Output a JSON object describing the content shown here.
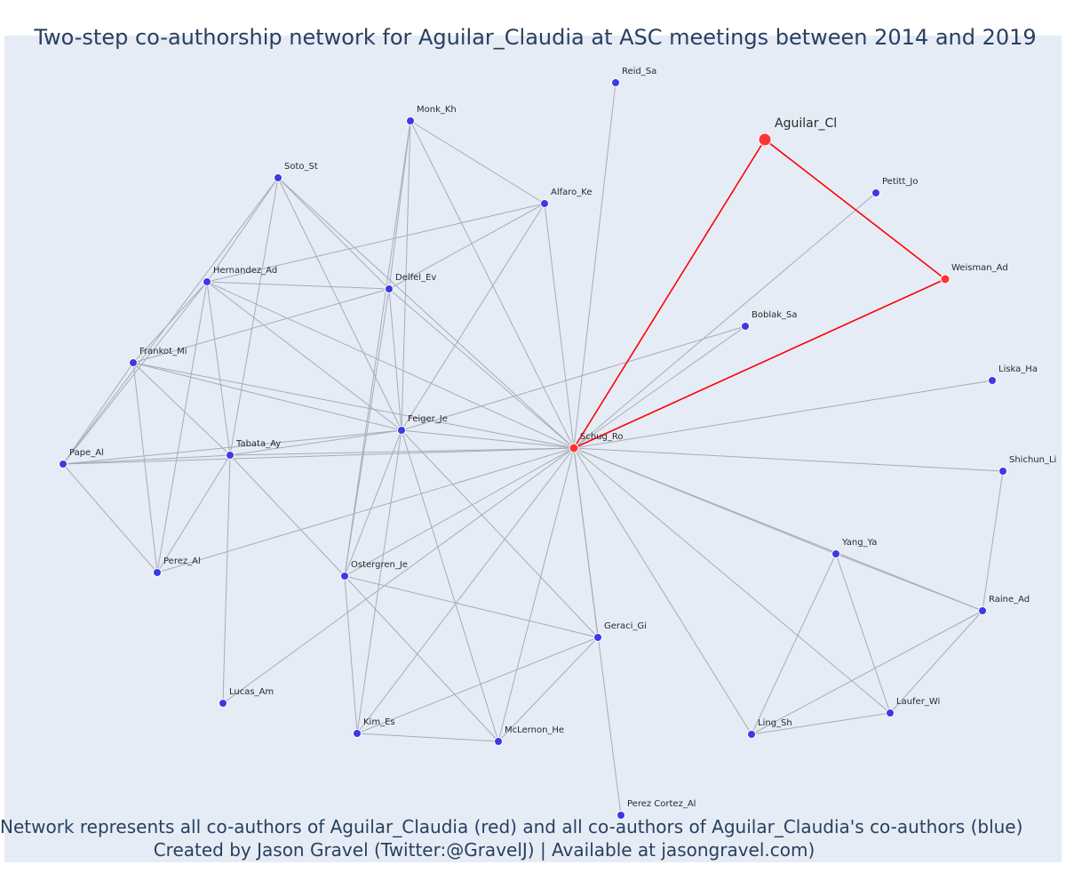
{
  "title": "Two-step co-authorship network for Aguilar_Claudia at ASC meetings between 2014 and 2019",
  "footer": {
    "line1": "Network represents all co-authors of Aguilar_Claudia (red) and all co-authors of Aguilar_Claudia's co-authors (blue)",
    "line2": "Created by Jason Gravel (Twitter:@GravelJ) | Available at jasongravel.com)"
  },
  "colors": {
    "background": "#e5ecf6",
    "primary_node": "#ff3333",
    "secondary_node": "#3a3ae6",
    "edge": "#a8abb6",
    "primary_edge": "#ff0000"
  },
  "nodes": [
    {
      "id": "Aguilar_Cl",
      "label": "Aguilar_Cl",
      "group": "focal"
    },
    {
      "id": "Weisman_Ad",
      "label": "Weisman_Ad",
      "group": "coauthor"
    },
    {
      "id": "Schug_Ro",
      "label": "Schug_Ro",
      "group": "coauthor"
    },
    {
      "id": "Reid_Sa",
      "label": "Reid_Sa",
      "group": "second"
    },
    {
      "id": "Monk_Kh",
      "label": "Monk_Kh",
      "group": "second"
    },
    {
      "id": "Alfaro_Ke",
      "label": "Alfaro_Ke",
      "group": "second"
    },
    {
      "id": "Soto_St",
      "label": "Soto_St",
      "group": "second"
    },
    {
      "id": "Petitt_Jo",
      "label": "Petitt_Jo",
      "group": "second"
    },
    {
      "id": "Hernandez_Ad",
      "label": "Hernandez_Ad",
      "group": "second"
    },
    {
      "id": "Delfel_Ev",
      "label": "Delfel_Ev",
      "group": "second"
    },
    {
      "id": "Boblak_Sa",
      "label": "Boblak_Sa",
      "group": "second"
    },
    {
      "id": "Frankot_Mi",
      "label": "Frankot_Mi",
      "group": "second"
    },
    {
      "id": "Liska_Ha",
      "label": "Liska_Ha",
      "group": "second"
    },
    {
      "id": "Feiger_Je",
      "label": "Feiger_Je",
      "group": "second"
    },
    {
      "id": "Tabata_Ay",
      "label": "Tabata_Ay",
      "group": "second"
    },
    {
      "id": "Pape_Al",
      "label": "Pape_Al",
      "group": "second"
    },
    {
      "id": "Shichun_Li",
      "label": "Shichun_Li",
      "group": "second"
    },
    {
      "id": "Yang_Ya",
      "label": "Yang_Ya",
      "group": "second"
    },
    {
      "id": "Perez_Al",
      "label": "Perez_Al",
      "group": "second"
    },
    {
      "id": "Ostergren_Je",
      "label": "Ostergren_Je",
      "group": "second"
    },
    {
      "id": "Raine_Ad",
      "label": "Raine_Ad",
      "group": "second"
    },
    {
      "id": "Geraci_Gi",
      "label": "Geraci_Gi",
      "group": "second"
    },
    {
      "id": "Lucas_Am",
      "label": "Lucas_Am",
      "group": "second"
    },
    {
      "id": "Laufer_Wi",
      "label": "Laufer_Wi",
      "group": "second"
    },
    {
      "id": "Kim_Es",
      "label": "Kim_Es",
      "group": "second"
    },
    {
      "id": "McLernon_He",
      "label": "McLernon_He",
      "group": "second"
    },
    {
      "id": "Ling_Sh",
      "label": "Ling_Sh",
      "group": "second"
    },
    {
      "id": "Perez_Cortez_Al",
      "label": "Perez Cortez_Al",
      "group": "second"
    }
  ],
  "edges": [
    [
      "Aguilar_Cl",
      "Schug_Ro"
    ],
    [
      "Aguilar_Cl",
      "Weisman_Ad"
    ],
    [
      "Weisman_Ad",
      "Schug_Ro"
    ],
    [
      "Schug_Ro",
      "Reid_Sa"
    ],
    [
      "Schug_Ro",
      "Monk_Kh"
    ],
    [
      "Schug_Ro",
      "Alfaro_Ke"
    ],
    [
      "Schug_Ro",
      "Soto_St"
    ],
    [
      "Schug_Ro",
      "Petitt_Jo"
    ],
    [
      "Schug_Ro",
      "Hernandez_Ad"
    ],
    [
      "Schug_Ro",
      "Delfel_Ev"
    ],
    [
      "Schug_Ro",
      "Boblak_Sa"
    ],
    [
      "Schug_Ro",
      "Frankot_Mi"
    ],
    [
      "Schug_Ro",
      "Liska_Ha"
    ],
    [
      "Schug_Ro",
      "Feiger_Je"
    ],
    [
      "Schug_Ro",
      "Tabata_Ay"
    ],
    [
      "Schug_Ro",
      "Pape_Al"
    ],
    [
      "Schug_Ro",
      "Shichun_Li"
    ],
    [
      "Schug_Ro",
      "Yang_Ya"
    ],
    [
      "Schug_Ro",
      "Perez_Al"
    ],
    [
      "Schug_Ro",
      "Ostergren_Je"
    ],
    [
      "Schug_Ro",
      "Raine_Ad"
    ],
    [
      "Schug_Ro",
      "Geraci_Gi"
    ],
    [
      "Schug_Ro",
      "Lucas_Am"
    ],
    [
      "Schug_Ro",
      "Laufer_Wi"
    ],
    [
      "Schug_Ro",
      "Kim_Es"
    ],
    [
      "Schug_Ro",
      "McLernon_He"
    ],
    [
      "Schug_Ro",
      "Ling_Sh"
    ],
    [
      "Schug_Ro",
      "Perez_Cortez_Al"
    ],
    [
      "Monk_Kh",
      "Alfaro_Ke"
    ],
    [
      "Monk_Kh",
      "Feiger_Je"
    ],
    [
      "Monk_Kh",
      "Delfel_Ev"
    ],
    [
      "Monk_Kh",
      "Ostergren_Je"
    ],
    [
      "Alfaro_Ke",
      "Hernandez_Ad"
    ],
    [
      "Alfaro_Ke",
      "Delfel_Ev"
    ],
    [
      "Alfaro_Ke",
      "Feiger_Je"
    ],
    [
      "Soto_St",
      "Hernandez_Ad"
    ],
    [
      "Soto_St",
      "Delfel_Ev"
    ],
    [
      "Soto_St",
      "Feiger_Je"
    ],
    [
      "Soto_St",
      "Tabata_Ay"
    ],
    [
      "Soto_St",
      "Pape_Al"
    ],
    [
      "Hernandez_Ad",
      "Delfel_Ev"
    ],
    [
      "Hernandez_Ad",
      "Frankot_Mi"
    ],
    [
      "Hernandez_Ad",
      "Feiger_Je"
    ],
    [
      "Hernandez_Ad",
      "Tabata_Ay"
    ],
    [
      "Hernandez_Ad",
      "Pape_Al"
    ],
    [
      "Hernandez_Ad",
      "Perez_Al"
    ],
    [
      "Delfel_Ev",
      "Frankot_Mi"
    ],
    [
      "Delfel_Ev",
      "Feiger_Je"
    ],
    [
      "Delfel_Ev",
      "Ostergren_Je"
    ],
    [
      "Boblak_Sa",
      "Feiger_Je"
    ],
    [
      "Frankot_Mi",
      "Feiger_Je"
    ],
    [
      "Frankot_Mi",
      "Tabata_Ay"
    ],
    [
      "Frankot_Mi",
      "Pape_Al"
    ],
    [
      "Frankot_Mi",
      "Perez_Al"
    ],
    [
      "Feiger_Je",
      "Tabata_Ay"
    ],
    [
      "Feiger_Je",
      "Pape_Al"
    ],
    [
      "Feiger_Je",
      "Ostergren_Je"
    ],
    [
      "Feiger_Je",
      "Geraci_Gi"
    ],
    [
      "Feiger_Je",
      "Kim_Es"
    ],
    [
      "Feiger_Je",
      "McLernon_He"
    ],
    [
      "Tabata_Ay",
      "Pape_Al"
    ],
    [
      "Tabata_Ay",
      "Perez_Al"
    ],
    [
      "Tabata_Ay",
      "Ostergren_Je"
    ],
    [
      "Tabata_Ay",
      "Lucas_Am"
    ],
    [
      "Pape_Al",
      "Perez_Al"
    ],
    [
      "Ostergren_Je",
      "Geraci_Gi"
    ],
    [
      "Ostergren_Je",
      "Kim_Es"
    ],
    [
      "Ostergren_Je",
      "McLernon_He"
    ],
    [
      "Geraci_Gi",
      "Kim_Es"
    ],
    [
      "Geraci_Gi",
      "McLernon_He"
    ],
    [
      "Kim_Es",
      "McLernon_He"
    ],
    [
      "Yang_Ya",
      "Raine_Ad"
    ],
    [
      "Yang_Ya",
      "Laufer_Wi"
    ],
    [
      "Yang_Ya",
      "Ling_Sh"
    ],
    [
      "Raine_Ad",
      "Shichun_Li"
    ],
    [
      "Raine_Ad",
      "Laufer_Wi"
    ],
    [
      "Raine_Ad",
      "Ling_Sh"
    ],
    [
      "Laufer_Wi",
      "Ling_Sh"
    ]
  ]
}
